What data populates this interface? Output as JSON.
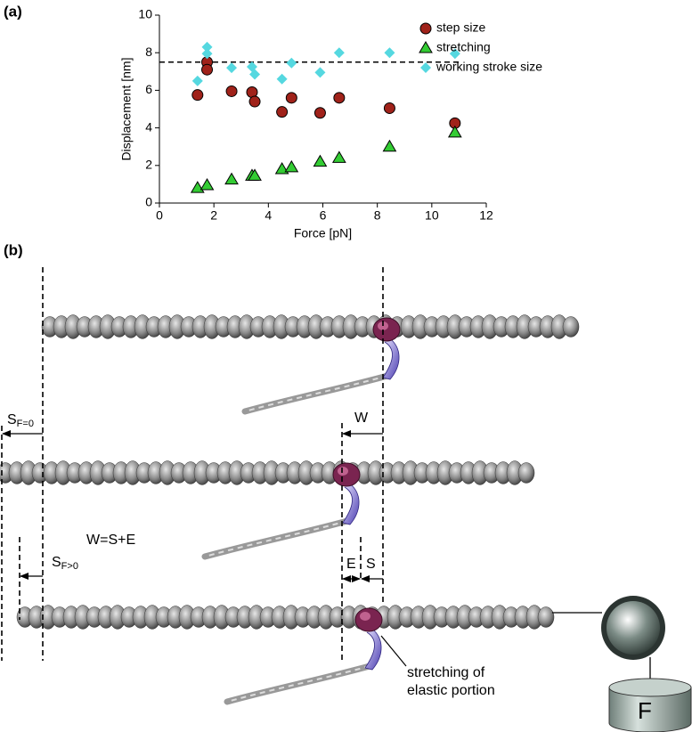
{
  "panels": [
    "(a)",
    "(b)"
  ],
  "chart_data": {
    "type": "scatter",
    "x_label": "Force [pN]",
    "y_label": "Displacement [nm]",
    "xlim": [
      0,
      12
    ],
    "xticks": [
      0,
      2,
      4,
      6,
      8,
      10,
      12
    ],
    "ylim": [
      0,
      10
    ],
    "yticks": [
      0,
      2,
      4,
      6,
      8,
      10
    ],
    "legend": "upper right",
    "reference_line": {
      "y": 7.5,
      "x": [
        0,
        11
      ]
    },
    "series": [
      {
        "name": "step size",
        "marker": "circle",
        "color": "#a0221a",
        "x": [
          1.4,
          1.75,
          1.75,
          2.65,
          3.4,
          3.5,
          4.5,
          4.85,
          5.9,
          6.6,
          8.45,
          10.85
        ],
        "values": [
          5.75,
          7.5,
          7.1,
          5.95,
          5.9,
          5.4,
          4.85,
          5.6,
          4.8,
          5.6,
          5.05,
          4.25
        ]
      },
      {
        "name": "stretching",
        "marker": "triangle",
        "color": "#33cc33",
        "x": [
          1.4,
          1.75,
          2.65,
          3.4,
          3.5,
          4.5,
          4.85,
          5.9,
          6.6,
          8.45,
          10.85
        ],
        "values": [
          0.8,
          0.95,
          1.25,
          1.45,
          1.45,
          1.8,
          1.9,
          2.2,
          2.4,
          3.0,
          3.75
        ]
      },
      {
        "name": "working stroke size",
        "marker": "diamond",
        "color": "#55d8e0",
        "x": [
          1.4,
          1.75,
          1.75,
          2.65,
          3.4,
          3.5,
          4.5,
          4.85,
          5.9,
          6.6,
          8.45,
          10.85
        ],
        "values": [
          6.5,
          8.3,
          7.95,
          7.2,
          7.25,
          6.85,
          6.6,
          7.45,
          6.95,
          8.0,
          8.0,
          7.95
        ]
      }
    ]
  },
  "diagram": {
    "s_f0": {
      "main": "S",
      "sub": "F=0"
    },
    "w": "W",
    "equation": "W=S+E",
    "s_fpos": {
      "main": "S",
      "sub": "F>0"
    },
    "e": "E",
    "s": "S",
    "stretch_note": [
      "stretching of",
      "elastic portion"
    ],
    "force": "F"
  }
}
